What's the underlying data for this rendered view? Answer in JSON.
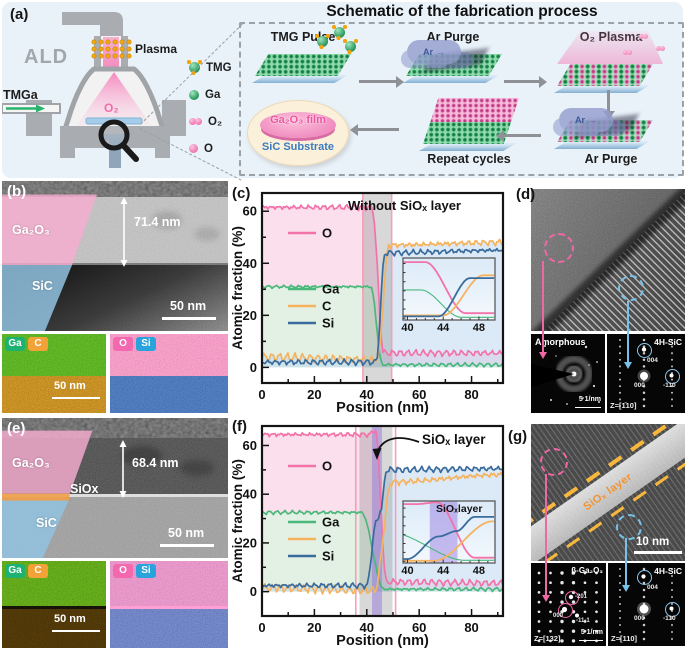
{
  "panel_a": {
    "label": "(a)",
    "ald_text": "ALD",
    "plasma_text": "Plasma",
    "tmga_text": "TMGa",
    "o2_text": "O₂",
    "legend": [
      {
        "label": "TMG"
      },
      {
        "label": "Ga"
      },
      {
        "label": "O₂"
      },
      {
        "label": "O"
      }
    ],
    "process_title": "Schematic of the fabrication process",
    "step1": "TMG Pulse",
    "step2": "Ar Purge",
    "step3": "O₂ Plasma",
    "step4": "Ar Purge",
    "step5": "Repeat cycles",
    "ar_text": "Ar",
    "film_text": "Ga₂O₃ film",
    "substrate_text": "SiC Substrate"
  },
  "panel_b": {
    "label": "(b)",
    "film": "Ga₂O₃",
    "substrate": "SiC",
    "thickness": "71.4 nm",
    "scalebar": "50 nm",
    "eds_left": {
      "tag1": "Ga",
      "tag2": "C",
      "scalebar": "50 nm"
    },
    "eds_right": {
      "tag1": "O",
      "tag2": "Si"
    }
  },
  "panel_c": {
    "label": "(c)"
  },
  "panel_d": {
    "label": "(d)",
    "left_pattern": {
      "title": "Amorphous",
      "scalebar": "5 1/nm"
    },
    "right_pattern": {
      "title": "4H-SiC",
      "spot_top": "004",
      "spot_center": "000",
      "spot_side": "-110",
      "zone": "Z=[1̄10]"
    }
  },
  "panel_e": {
    "label": "(e)",
    "film": "Ga₂O₃",
    "interlayer": "SiOx",
    "substrate": "SiC",
    "thickness": "68.4 nm",
    "scalebar": "50 nm",
    "eds_left": {
      "tag1": "Ga",
      "tag2": "C",
      "scalebar": "50 nm"
    },
    "eds_right": {
      "tag1": "O",
      "tag2": "Si"
    }
  },
  "panel_f": {
    "label": "(f)",
    "annotation": "SiOₓ layer",
    "inset_label": "SiOₓlayer"
  },
  "panel_g": {
    "label": "(g)",
    "band_label": "SiOₓ layer",
    "scalebar": "10 nm",
    "left_pattern": {
      "title": "β-Ga₂O₃",
      "spot_a": "-201",
      "spot_b": "000",
      "spot_c": "-11-1",
      "zone": "Z=[132]",
      "scalebar": "5 1/nm"
    },
    "right_pattern": {
      "title": "4H-SiC",
      "spot_top": "004",
      "spot_center": "000",
      "spot_side": "-110",
      "zone": "Z=[110]"
    }
  },
  "chart_data": [
    {
      "id": "c",
      "type": "line",
      "title": "Without SiOₓ layer",
      "xlabel": "Position (nm)",
      "ylabel": "Atomic fraction (%)",
      "xlim": [
        0,
        92
      ],
      "ylim": [
        -6,
        67
      ],
      "xticks": [
        0,
        20,
        40,
        60,
        80
      ],
      "yticks": [
        0,
        20,
        40,
        60
      ],
      "legend_position": "inside-left",
      "grid": false,
      "bands": [
        {
          "x0": 38.5,
          "x1": 49.5,
          "fill": "rgba(125,125,125,0.30)",
          "stroke": "rgba(244,155,175,0.9)"
        }
      ],
      "series": [
        {
          "name": "O",
          "color": "#f272a9",
          "noise": 1.3,
          "points": [
            [
              0,
              61.5
            ],
            [
              42,
              61.5
            ],
            [
              46.5,
              5.5
            ],
            [
              92,
              5.5
            ]
          ]
        },
        {
          "name": "Ga",
          "color": "#4bb87b",
          "noise": 0.8,
          "points": [
            [
              0,
              31
            ],
            [
              41.5,
              31
            ],
            [
              46,
              1
            ],
            [
              92,
              1
            ]
          ]
        },
        {
          "name": "C",
          "color": "#f5b360",
          "noise": 1.7,
          "points": [
            [
              0,
              4
            ],
            [
              44,
              3
            ],
            [
              48.5,
              47
            ],
            [
              92,
              48
            ]
          ]
        },
        {
          "name": "Si",
          "color": "#3a6b9d",
          "noise": 1.2,
          "points": [
            [
              0,
              2
            ],
            [
              43.5,
              2
            ],
            [
              47,
              44
            ],
            [
              92,
              45
            ]
          ]
        }
      ],
      "inset": {
        "xlim": [
          39.5,
          49.8
        ],
        "ylim": [
          -2,
          66
        ],
        "xticks": [
          40,
          44,
          48
        ],
        "bands": []
      }
    },
    {
      "id": "f",
      "type": "line",
      "title": "",
      "xlabel": "Position (nm)",
      "ylabel": "Atomic fraction (%)",
      "xlim": [
        0,
        92
      ],
      "ylim": [
        -10,
        68
      ],
      "xticks": [
        0,
        20,
        40,
        60,
        80
      ],
      "yticks": [
        0,
        20,
        40,
        60
      ],
      "legend_position": "inside-left",
      "grid": false,
      "bands": [
        {
          "x0": 35.8,
          "x1": 51.0,
          "fill": "none",
          "stroke": "rgba(244,155,175,0.95)"
        },
        {
          "x0": 37.2,
          "x1": 49.8,
          "fill": "rgba(125,125,125,0.30)",
          "stroke": "none"
        },
        {
          "x0": 42.0,
          "x1": 45.8,
          "fill": "rgba(142,112,222,0.45)",
          "stroke": "none"
        }
      ],
      "series": [
        {
          "name": "O",
          "color": "#f272a9",
          "noise": 1.4,
          "points": [
            [
              0,
              64.5
            ],
            [
              41,
              64.5
            ],
            [
              43.3,
              66.5
            ],
            [
              47.5,
              4
            ],
            [
              92,
              3.5
            ]
          ]
        },
        {
          "name": "Ga",
          "color": "#4bb87b",
          "noise": 0.9,
          "points": [
            [
              0,
              32.5
            ],
            [
              38,
              32.5
            ],
            [
              46.5,
              1
            ],
            [
              92,
              1
            ]
          ]
        },
        {
          "name": "C",
          "color": "#f5b360",
          "noise": 1.8,
          "points": [
            [
              0,
              1.5
            ],
            [
              43,
              0.5
            ],
            [
              49.5,
              45
            ],
            [
              92,
              48
            ]
          ]
        },
        {
          "name": "Si",
          "color": "#3a6b9d",
          "noise": 1.3,
          "points": [
            [
              0,
              2.5
            ],
            [
              40,
              2.5
            ],
            [
              43.5,
              28
            ],
            [
              45.5,
              34
            ],
            [
              47.5,
              50
            ],
            [
              92,
              50.5
            ]
          ]
        }
      ],
      "inset": {
        "xlim": [
          39.5,
          49.8
        ],
        "ylim": [
          -2,
          68
        ],
        "xticks": [
          40,
          44,
          48
        ],
        "bands": [
          {
            "x0": 42.5,
            "x1": 45.6,
            "fill": "rgba(142,112,222,0.45)",
            "stroke": "none"
          }
        ]
      }
    }
  ]
}
